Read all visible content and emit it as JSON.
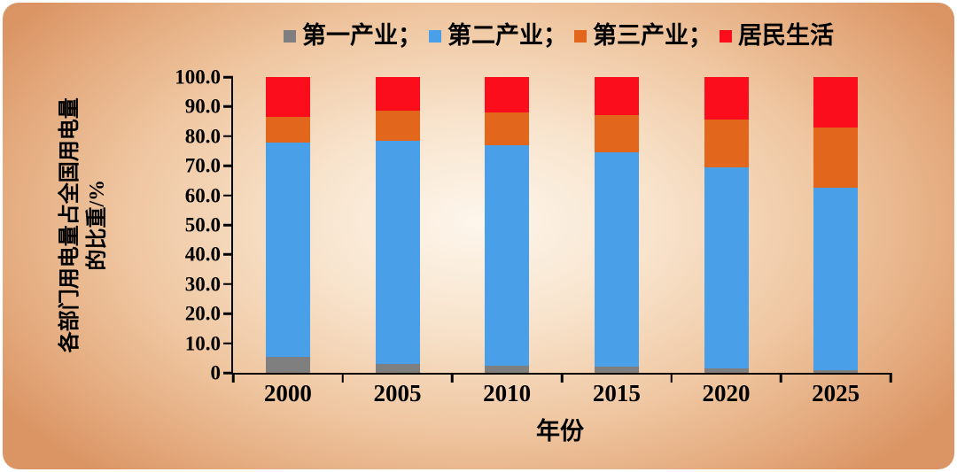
{
  "chart_data": {
    "type": "bar",
    "stacked": true,
    "categories": [
      "2000",
      "2005",
      "2010",
      "2015",
      "2020",
      "2025"
    ],
    "series": [
      {
        "name": "第一产业",
        "color": "#7f7f7f",
        "values": [
          5.5,
          3.0,
          2.5,
          2.0,
          1.5,
          1.0
        ]
      },
      {
        "name": "第二产业",
        "color": "#4aa0e8",
        "values": [
          72.5,
          75.5,
          74.5,
          72.5,
          68.0,
          61.5
        ]
      },
      {
        "name": "第三产业",
        "color": "#e2661c",
        "values": [
          8.5,
          10.0,
          11.0,
          12.5,
          16.0,
          20.5
        ]
      },
      {
        "name": "居民生活",
        "color": "#fc0d1c",
        "values": [
          13.5,
          11.5,
          12.0,
          13.0,
          14.5,
          17.0
        ]
      }
    ],
    "legend_position": "top",
    "legend_separator": "；",
    "xlabel": "年份",
    "ylabel": "各部门用电量占全国用电量的比重/%",
    "ylabel_lines": [
      "各部门用电量占全国用电量",
      "的比重/%"
    ],
    "ylim": [
      0,
      100
    ],
    "ytick_labels": [
      "100.0",
      "90.0",
      "80.0",
      "70.0",
      "60.0",
      "50.0",
      "40.0",
      "30.0",
      "20.0",
      "10.0",
      "0"
    ],
    "grid": false,
    "axis_color": "#000000"
  }
}
